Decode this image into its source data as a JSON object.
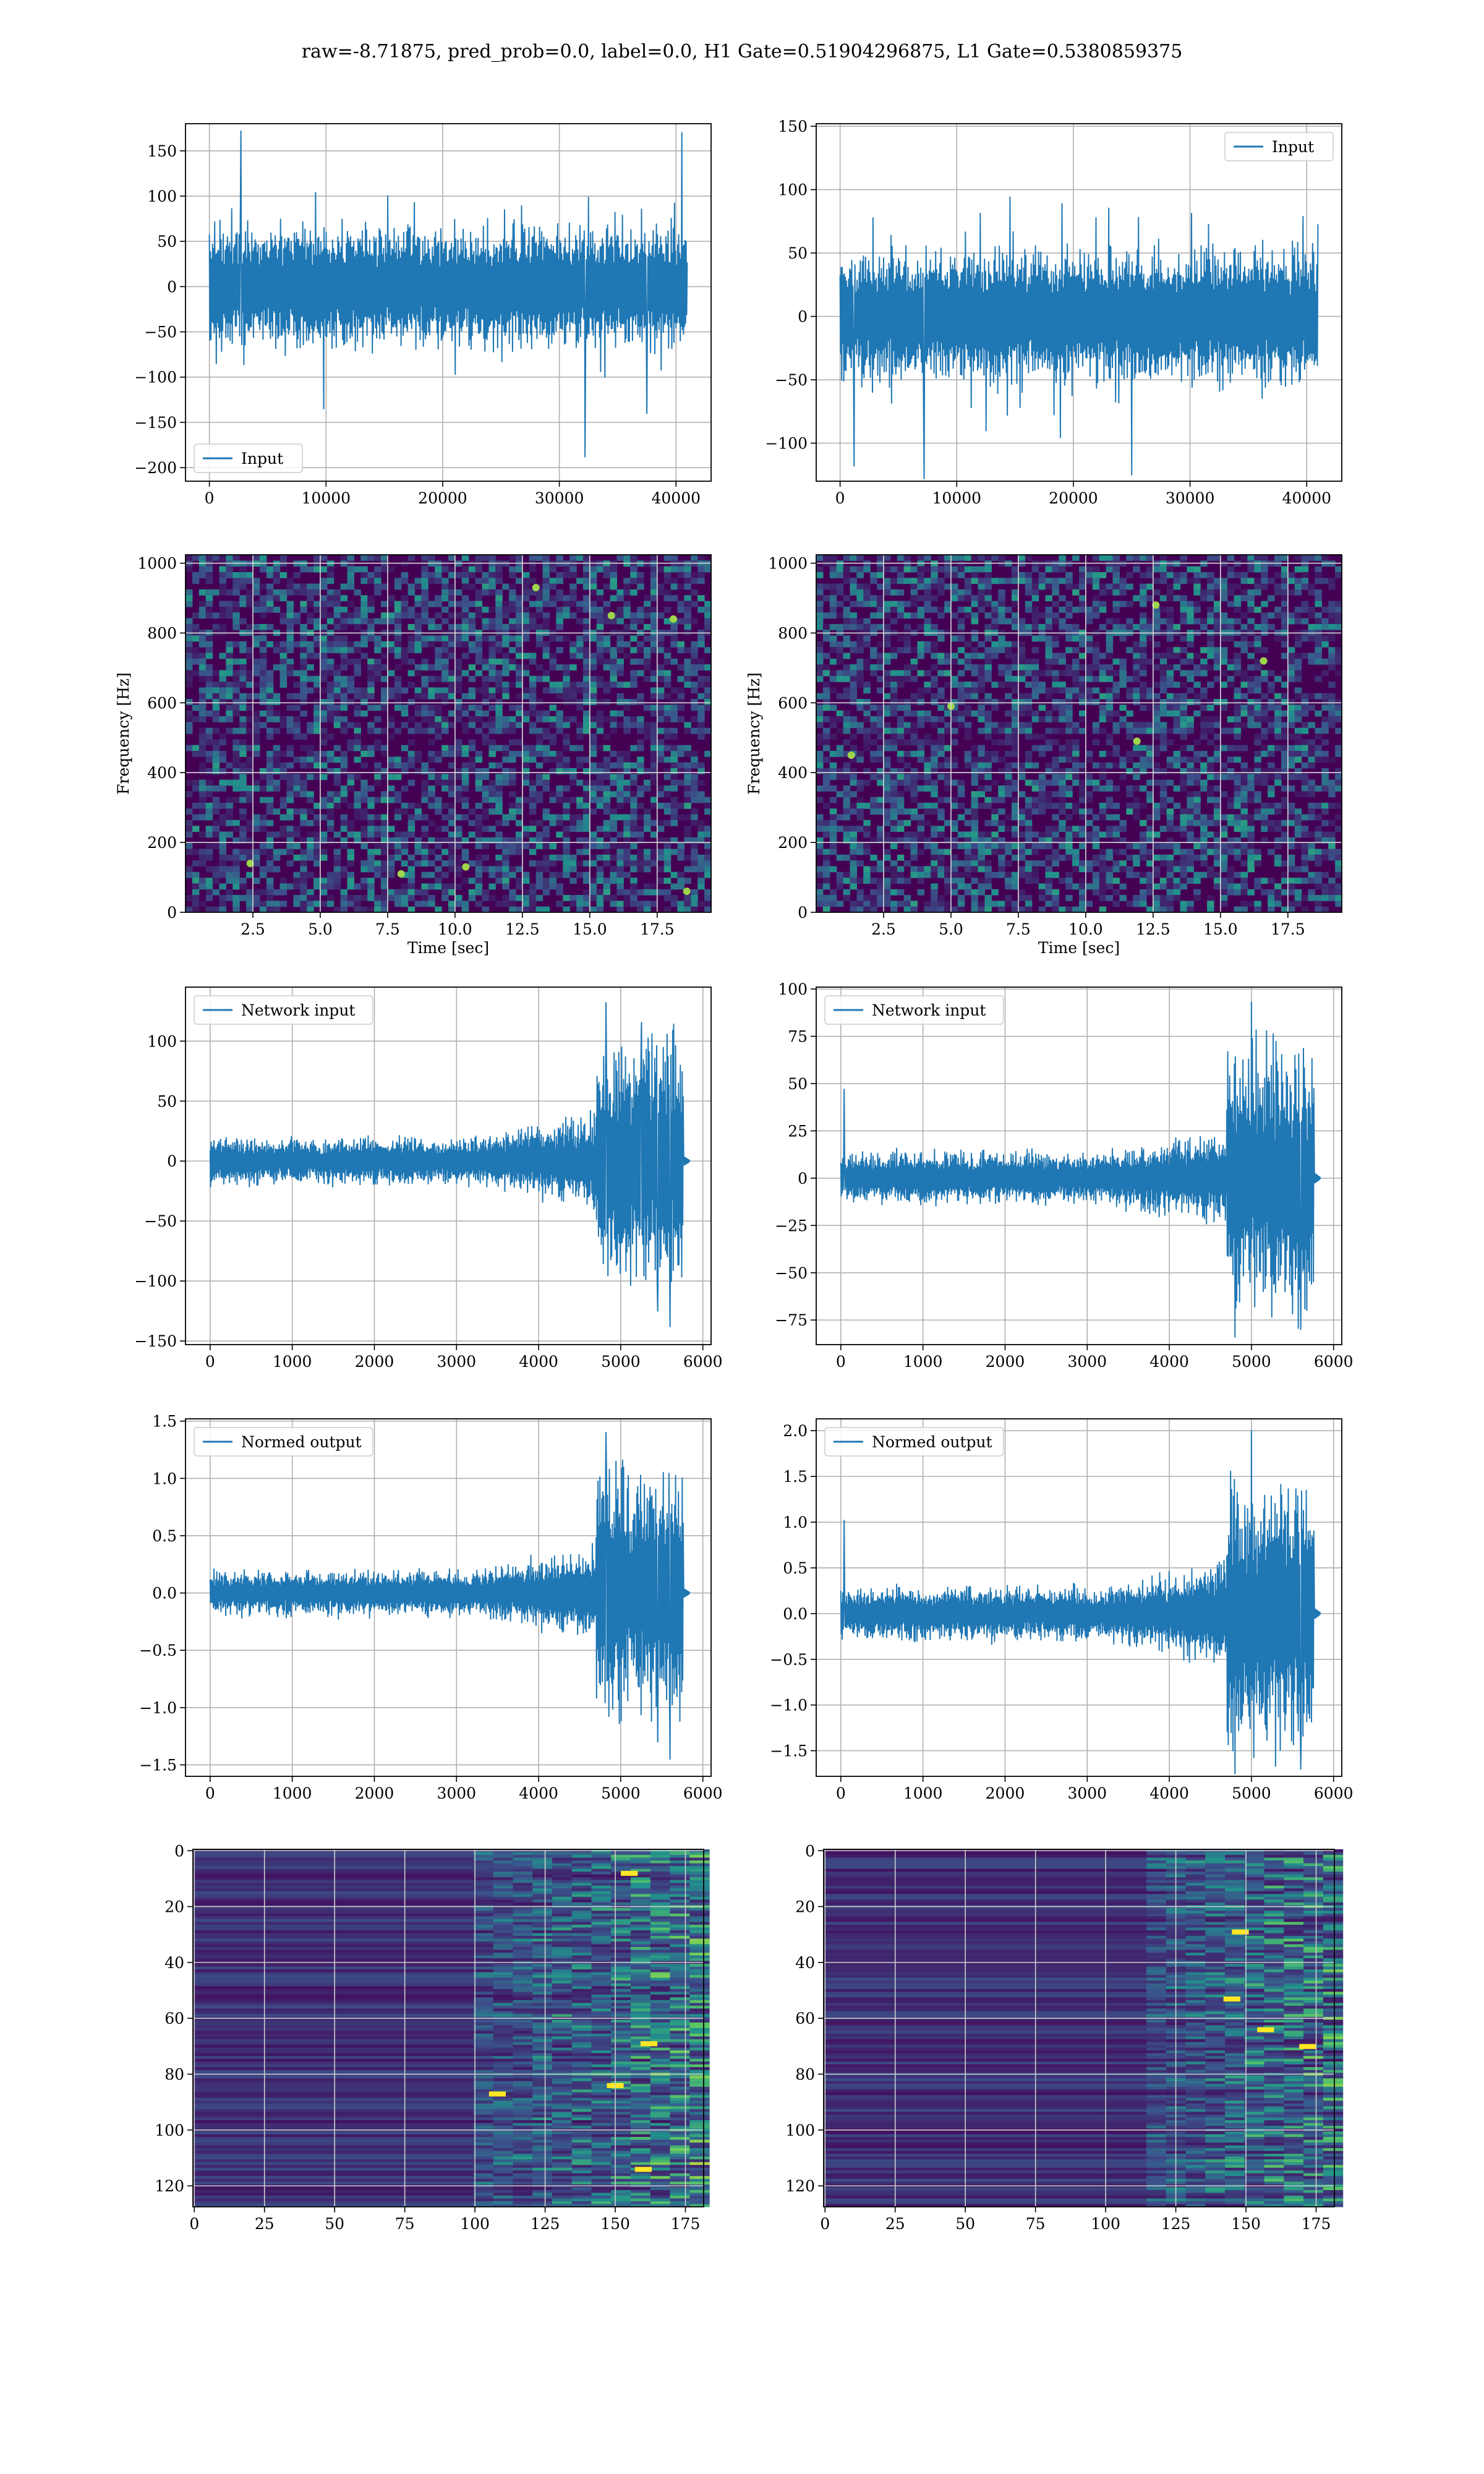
{
  "figure": {
    "title": "raw=-8.71875, pred_prob=0.0, label=0.0, H1 Gate=0.51904296875, L1 Gate=0.5380859375"
  },
  "colors": {
    "line": "#1f77b4",
    "grid": "#b0b0b0",
    "viridis_dark": "#440154",
    "viridis_mid": "#21918c",
    "viridis_bright": "#fde725"
  },
  "chart_data": [
    {
      "id": "h1-input",
      "type": "line",
      "legend": "Input",
      "legend_loc": "lower-left",
      "x_range": [
        0,
        40960
      ],
      "xlim": [
        -2048,
        43008
      ],
      "ylim": [
        -215,
        180
      ],
      "xticks": [
        0,
        10000,
        20000,
        30000,
        40000
      ],
      "yticks": [
        -200,
        -150,
        -100,
        -50,
        0,
        50,
        100,
        150
      ],
      "envelope": {
        "base_amp": 75,
        "peak_amp": 110,
        "n_points": 900
      },
      "spikes": [
        {
          "x": 2700,
          "y": 172
        },
        {
          "x": 40500,
          "y": 170
        },
        {
          "x": 32200,
          "y": -188
        },
        {
          "x": 9800,
          "y": -135
        },
        {
          "x": 37500,
          "y": -140
        }
      ],
      "xlabel": "",
      "ylabel": "",
      "grid": true
    },
    {
      "id": "l1-input",
      "type": "line",
      "legend": "Input",
      "legend_loc": "upper-right",
      "x_range": [
        0,
        40960
      ],
      "xlim": [
        -2048,
        43008
      ],
      "ylim": [
        -130,
        152
      ],
      "xticks": [
        0,
        10000,
        20000,
        30000,
        40000
      ],
      "yticks": [
        -100,
        -50,
        0,
        50,
        100,
        150
      ],
      "envelope": {
        "base_amp": 60,
        "peak_amp": 100,
        "n_points": 900
      },
      "spikes": [
        {
          "x": 7200,
          "y": -128
        },
        {
          "x": 25000,
          "y": -125
        },
        {
          "x": 1200,
          "y": -118
        }
      ],
      "xlabel": "",
      "ylabel": "",
      "grid": true
    },
    {
      "id": "h1-spectrogram",
      "type": "heatmap",
      "style": "spectrogram",
      "xlim": [
        0,
        19.5
      ],
      "ylim": [
        0,
        1024
      ],
      "xticks": [
        2.5,
        5.0,
        7.5,
        10.0,
        12.5,
        15.0,
        17.5
      ],
      "yticks": [
        0,
        200,
        400,
        600,
        800,
        1000
      ],
      "xlabel": "Time [sec]",
      "ylabel": "Frequency [Hz]",
      "grid": true,
      "bright_spots": [
        {
          "x": 10.4,
          "y": 130
        },
        {
          "x": 18.6,
          "y": 60
        },
        {
          "x": 18.1,
          "y": 840
        },
        {
          "x": 13.0,
          "y": 930
        },
        {
          "x": 15.8,
          "y": 850
        },
        {
          "x": 8.0,
          "y": 110
        },
        {
          "x": 2.4,
          "y": 140
        }
      ]
    },
    {
      "id": "l1-spectrogram",
      "type": "heatmap",
      "style": "spectrogram",
      "xlim": [
        0,
        19.5
      ],
      "ylim": [
        0,
        1024
      ],
      "xticks": [
        2.5,
        5.0,
        7.5,
        10.0,
        12.5,
        15.0,
        17.5
      ],
      "yticks": [
        0,
        200,
        400,
        600,
        800,
        1000
      ],
      "xlabel": "Time [sec]",
      "ylabel": "Frequency [Hz]",
      "grid": true,
      "bright_spots": [
        {
          "x": 11.9,
          "y": 490
        },
        {
          "x": 16.6,
          "y": 720
        },
        {
          "x": 5.0,
          "y": 590
        },
        {
          "x": 1.3,
          "y": 450
        },
        {
          "x": 12.6,
          "y": 880
        }
      ]
    },
    {
      "id": "h1-network-input",
      "type": "line",
      "legend": "Network input",
      "legend_loc": "upper-left",
      "x_range": [
        0,
        5760
      ],
      "tail_end": 5840,
      "xlim": [
        -300,
        6100
      ],
      "ylim": [
        -153,
        145
      ],
      "xticks": [
        0,
        1000,
        2000,
        3000,
        4000,
        5000,
        6000
      ],
      "yticks": [
        -150,
        -100,
        -50,
        0,
        50,
        100
      ],
      "envelope": {
        "base_amp": 22,
        "mid_amp": 45,
        "peak_amp": 120,
        "peak_start": 4700,
        "n_points": 1000
      },
      "spikes": [
        {
          "x": 4820,
          "y": 132
        },
        {
          "x": 5600,
          "y": -138
        },
        {
          "x": 5450,
          "y": -125
        },
        {
          "x": 5250,
          "y": 108
        }
      ],
      "xlabel": "",
      "ylabel": "",
      "grid": true
    },
    {
      "id": "l1-network-input",
      "type": "line",
      "legend": "Network input",
      "legend_loc": "upper-left",
      "x_range": [
        0,
        5760
      ],
      "tail_end": 5840,
      "xlim": [
        -300,
        6100
      ],
      "ylim": [
        -88,
        101
      ],
      "xticks": [
        0,
        1000,
        2000,
        3000,
        4000,
        5000,
        6000
      ],
      "yticks": [
        -75,
        -50,
        -25,
        0,
        25,
        50,
        75,
        100
      ],
      "envelope": {
        "base_amp": 16,
        "mid_amp": 30,
        "peak_amp": 82,
        "peak_start": 4700,
        "n_points": 1000
      },
      "spikes": [
        {
          "x": 5000,
          "y": 93
        },
        {
          "x": 40,
          "y": 47
        },
        {
          "x": 4800,
          "y": -84
        },
        {
          "x": 5600,
          "y": -80
        }
      ],
      "xlabel": "",
      "ylabel": "",
      "grid": true
    },
    {
      "id": "h1-normed-output",
      "type": "line",
      "legend": "Normed output",
      "legend_loc": "upper-left",
      "x_range": [
        0,
        5760
      ],
      "tail_end": 5840,
      "xlim": [
        -300,
        6100
      ],
      "ylim": [
        -1.6,
        1.52
      ],
      "xticks": [
        0,
        1000,
        2000,
        3000,
        4000,
        5000,
        6000
      ],
      "yticks": [
        -1.5,
        -1.0,
        -0.5,
        0.0,
        0.5,
        1.0,
        1.5
      ],
      "envelope": {
        "base_amp": 0.23,
        "mid_amp": 0.47,
        "peak_amp": 1.25,
        "peak_start": 4700,
        "n_points": 1000
      },
      "spikes": [
        {
          "x": 4820,
          "y": 1.4
        },
        {
          "x": 5600,
          "y": -1.45
        },
        {
          "x": 5450,
          "y": -1.3
        }
      ],
      "xlabel": "",
      "ylabel": "",
      "grid": true
    },
    {
      "id": "l1-normed-output",
      "type": "line",
      "legend": "Normed output",
      "legend_loc": "upper-left",
      "x_range": [
        0,
        5760
      ],
      "tail_end": 5840,
      "xlim": [
        -300,
        6100
      ],
      "ylim": [
        -1.78,
        2.13
      ],
      "xticks": [
        0,
        1000,
        2000,
        3000,
        4000,
        5000,
        6000
      ],
      "yticks": [
        -1.5,
        -1.0,
        -0.5,
        0.0,
        0.5,
        1.0,
        1.5,
        2.0
      ],
      "envelope": {
        "base_amp": 0.34,
        "mid_amp": 0.65,
        "peak_amp": 1.72,
        "peak_start": 4700,
        "n_points": 1000
      },
      "spikes": [
        {
          "x": 5000,
          "y": 2.0
        },
        {
          "x": 40,
          "y": 1.02
        },
        {
          "x": 4800,
          "y": -1.75
        },
        {
          "x": 5600,
          "y": -1.7
        }
      ],
      "xlabel": "",
      "ylabel": "",
      "grid": true
    },
    {
      "id": "h1-feature-map",
      "type": "heatmap",
      "style": "featuremap",
      "xlim": [
        -0.5,
        181.5
      ],
      "ylim": [
        127.5,
        -0.5
      ],
      "n_rows": 128,
      "n_cols": 182,
      "xticks": [
        0,
        25,
        50,
        75,
        100,
        125,
        150,
        175
      ],
      "yticks": [
        0,
        20,
        40,
        60,
        80,
        100,
        120
      ],
      "activity_start": 100,
      "hotspots": [
        {
          "x": 162,
          "y": 69
        },
        {
          "x": 160,
          "y": 114
        },
        {
          "x": 108,
          "y": 87
        },
        {
          "x": 150,
          "y": 84
        },
        {
          "x": 155,
          "y": 8
        }
      ],
      "xlabel": "",
      "ylabel": "",
      "grid": true
    },
    {
      "id": "l1-feature-map",
      "type": "heatmap",
      "style": "featuremap",
      "xlim": [
        -0.5,
        181.5
      ],
      "ylim": [
        127.5,
        -0.5
      ],
      "n_rows": 128,
      "n_cols": 182,
      "activity_start": 115,
      "xticks": [
        0,
        25,
        50,
        75,
        100,
        125,
        150,
        175
      ],
      "yticks": [
        0,
        20,
        40,
        60,
        80,
        100,
        120
      ],
      "hotspots": [
        {
          "x": 157,
          "y": 64
        },
        {
          "x": 172,
          "y": 70
        },
        {
          "x": 148,
          "y": 29
        },
        {
          "x": 145,
          "y": 53
        }
      ],
      "xlabel": "",
      "ylabel": "",
      "grid": true
    }
  ]
}
